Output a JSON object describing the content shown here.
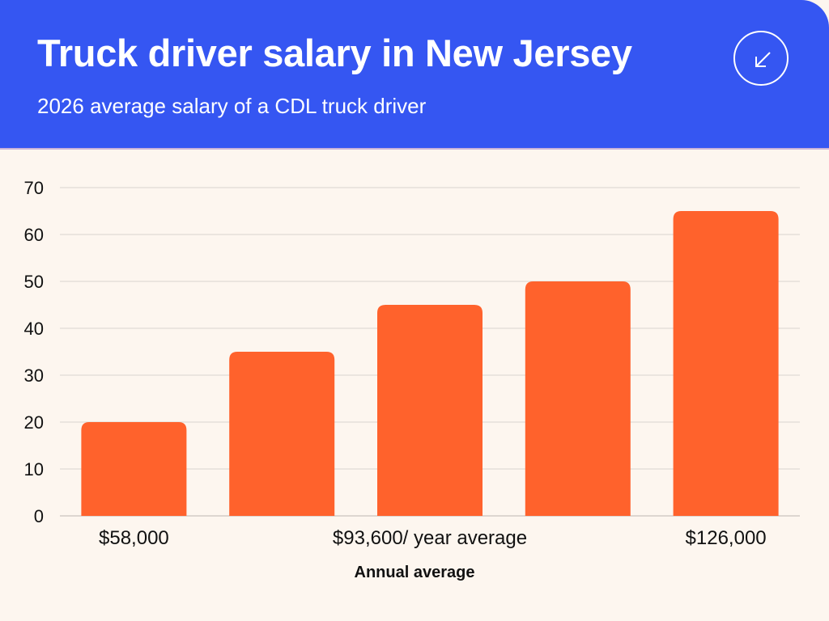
{
  "header": {
    "title": "Truck driver salary in New Jersey",
    "subtitle": "2026 average salary of a CDL truck driver",
    "icon": "arrow-down-left-icon"
  },
  "colors": {
    "header_bg": "#3556f2",
    "page_bg": "#fdf6ef",
    "bar": "#ff622c",
    "grid": "#d9d4cf"
  },
  "chart_data": {
    "type": "bar",
    "categories": [
      "$58,000",
      "",
      "$93,600/ year average",
      "",
      "$126,000"
    ],
    "values": [
      20,
      35,
      45,
      50,
      65
    ],
    "xlabel": "Annual average",
    "ylabel": "",
    "ylim": [
      0,
      70
    ],
    "yticks": [
      0,
      10,
      20,
      30,
      40,
      50,
      60,
      70
    ],
    "grid": true,
    "legend": "none"
  }
}
